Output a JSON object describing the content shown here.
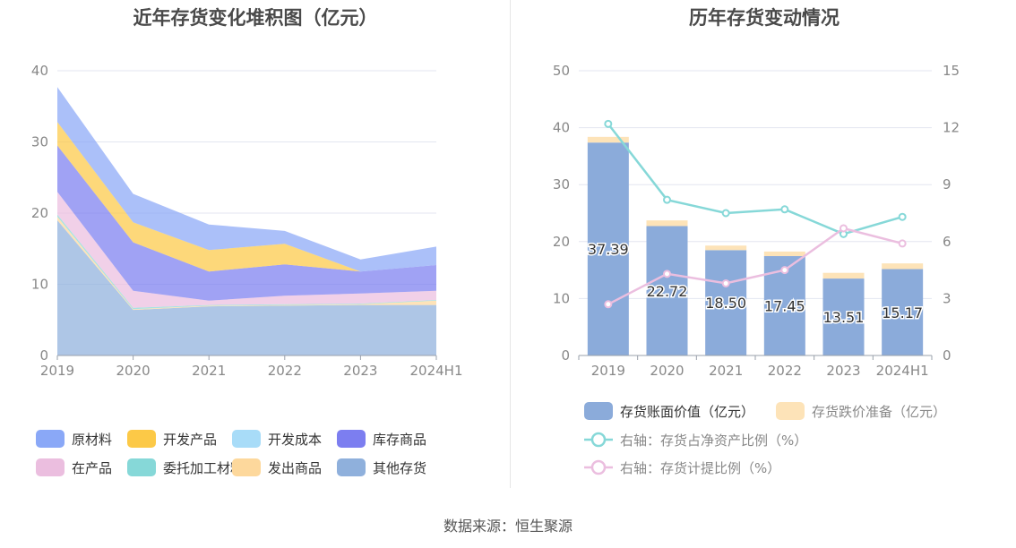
{
  "left_title": "近年存货变化堆积图（亿元）",
  "right_title": "历年存货变动情况",
  "source": "数据来源：恒生聚源",
  "chart_data": [
    {
      "type": "area",
      "stacked": true,
      "title": "近年存货变化堆积图（亿元）",
      "categories": [
        "2019",
        "2020",
        "2021",
        "2022",
        "2023",
        "2024H1"
      ],
      "ylim": [
        0,
        40
      ],
      "yticks": [
        "0",
        "10",
        "20",
        "30",
        "40"
      ],
      "grid": true,
      "legend_position": "bottom",
      "series": [
        {
          "name": "其他存货",
          "color": "#8fb0dc",
          "values": [
            19.0,
            6.4,
            6.9,
            7.0,
            7.1,
            7.1
          ]
        },
        {
          "name": "发出商品",
          "color": "#fdd89c",
          "values": [
            0.5,
            0.1,
            0.1,
            0.1,
            0.1,
            0.6
          ]
        },
        {
          "name": "委托加工材料",
          "color": "#86d8d8",
          "values": [
            0.3,
            0.2,
            0.1,
            0.1,
            0.1,
            0.1
          ]
        },
        {
          "name": "在产品",
          "color": "#ebbedf",
          "values": [
            3.2,
            2.4,
            0.6,
            1.2,
            1.4,
            1.3
          ]
        },
        {
          "name": "库存商品",
          "color": "#7c7ef0",
          "values": [
            6.5,
            6.8,
            4.1,
            4.4,
            3.1,
            3.6
          ]
        },
        {
          "name": "开发成本",
          "color": "#a8dcf8",
          "values": [
            0,
            0,
            0,
            0,
            0,
            0
          ]
        },
        {
          "name": "开发产品",
          "color": "#fcc947",
          "values": [
            3.3,
            2.8,
            3.0,
            2.9,
            0,
            0
          ]
        },
        {
          "name": "原材料",
          "color": "#8aa8f7",
          "values": [
            4.9,
            4.0,
            3.6,
            1.8,
            1.7,
            2.6
          ]
        }
      ],
      "legend_rows": [
        [
          "原材料",
          "开发产品",
          "开发成本",
          "库存商品"
        ],
        [
          "在产品",
          "委托加工材料",
          "发出商品",
          "其他存货"
        ]
      ]
    },
    {
      "type": "bar",
      "stacked": true,
      "title": "历年存货变动情况",
      "categories": [
        "2019",
        "2020",
        "2021",
        "2022",
        "2023",
        "2024H1"
      ],
      "ylim": [
        0,
        50
      ],
      "yticks_left": [
        "0",
        "10",
        "20",
        "30",
        "40",
        "50"
      ],
      "y2lim": [
        0,
        15
      ],
      "yticks_right": [
        "0",
        "3",
        "6",
        "9",
        "12",
        "15"
      ],
      "grid": true,
      "legend_position": "bottom",
      "bar_series": [
        {
          "name": "存货账面价值（亿元）",
          "color": "#8babda",
          "values": [
            37.39,
            22.72,
            18.5,
            17.45,
            13.51,
            15.17
          ],
          "labels": [
            "37.39",
            "22.72",
            "18.50",
            "17.45",
            "13.51",
            "15.17"
          ]
        },
        {
          "name": "存货跌价准备（亿元）",
          "color": "#fde3b8",
          "values": [
            1.0,
            1.0,
            0.8,
            0.8,
            1.0,
            1.0
          ]
        }
      ],
      "line_series": [
        {
          "name": "右轴：存货占净资产比例（%）",
          "color": "#86d8d8",
          "axis": "right",
          "values": [
            12.2,
            8.2,
            7.5,
            7.7,
            6.4,
            7.3
          ]
        },
        {
          "name": "右轴：存货计提比例（%）",
          "color": "#ebbedf",
          "axis": "right",
          "values": [
            2.7,
            4.3,
            3.8,
            4.5,
            6.7,
            5.9
          ]
        }
      ]
    }
  ]
}
